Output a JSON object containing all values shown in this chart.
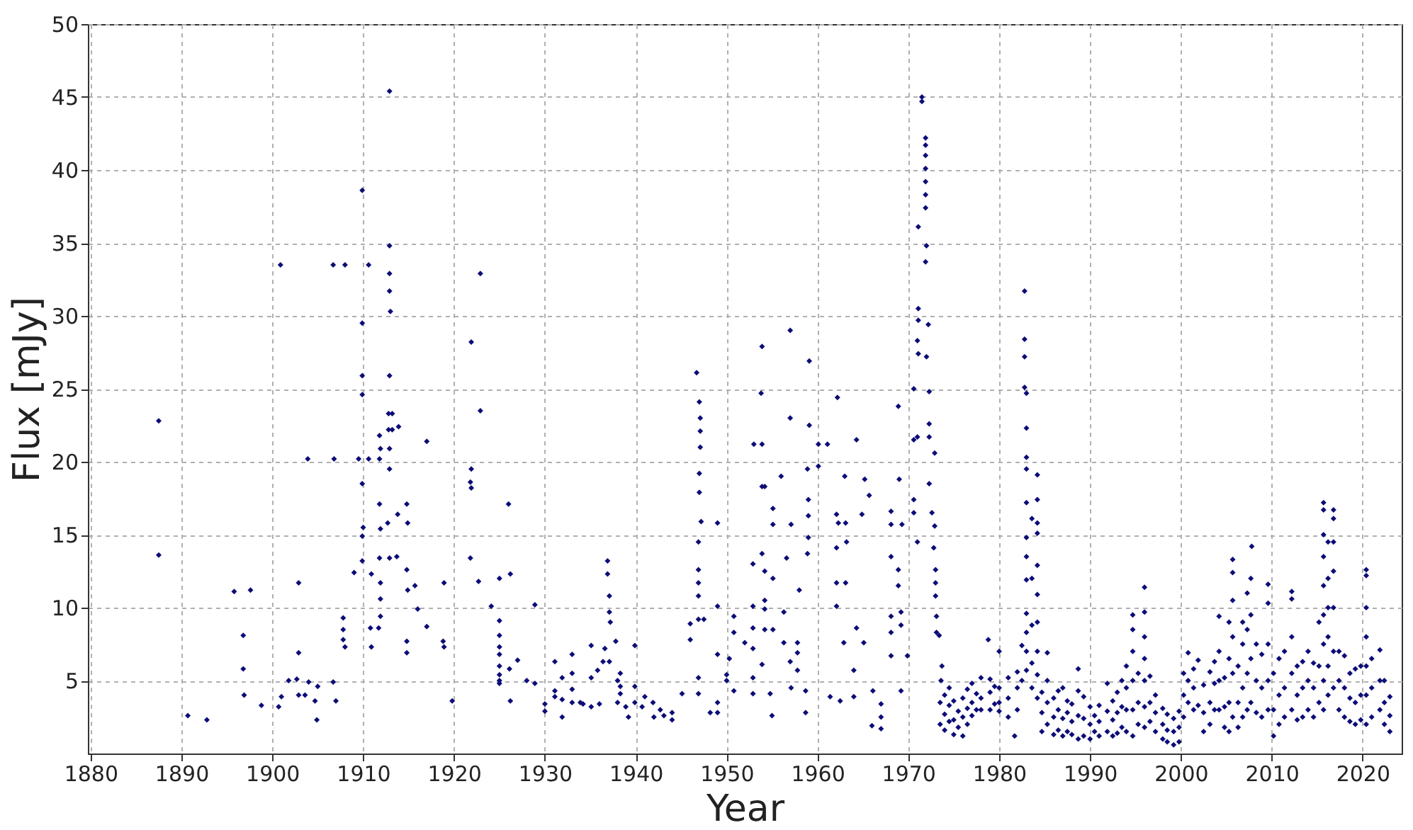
{
  "chart_data": {
    "type": "scatter",
    "xlabel": "Year",
    "ylabel": "Flux [mJy]",
    "xlim": [
      1879.7,
      2024.3
    ],
    "ylim": [
      0,
      50
    ],
    "xticks": [
      1880,
      1890,
      1900,
      1910,
      1920,
      1930,
      1940,
      1950,
      1960,
      1970,
      1980,
      1990,
      2000,
      2010,
      2020
    ],
    "yticks": [
      5,
      10,
      15,
      20,
      25,
      30,
      35,
      40,
      45,
      50
    ],
    "grid": true,
    "marker": "diamond",
    "series": [
      {
        "color": "#0c0c78",
        "x": [
          1887.5,
          1887.5,
          1890.7,
          1892.8,
          1895.8,
          1897.6,
          1896.8,
          1896.8,
          1896.9,
          1898.8,
          1900.9,
          1900.7,
          1901.0,
          1901.8,
          1902.7,
          1902.9,
          1902.9,
          1902.9,
          1903.6,
          1903.9,
          1904.0,
          1904.7,
          1905.0,
          1904.9,
          1906.7,
          1908.0,
          1906.8,
          1906.7,
          1907.0,
          1907.8,
          1907.8,
          1907.8,
          1908.0,
          1909.0,
          1909.5,
          1909.9,
          1909.9,
          1909.9,
          1909.9,
          1909.9,
          1910.0,
          1909.9,
          1909.9,
          1910.6,
          1910.6,
          1910.9,
          1910.8,
          1910.9,
          1911.8,
          1911.9,
          1911.8,
          1911.8,
          1911.9,
          1911.8,
          1911.9,
          1911.9,
          1911.9,
          1911.7,
          1912.9,
          1912.9,
          1912.9,
          1912.9,
          1913.0,
          1912.9,
          1912.8,
          1913.2,
          1912.8,
          1913.2,
          1912.9,
          1912.9,
          1912.7,
          1912.9,
          1913.9,
          1913.8,
          1913.7,
          1914.8,
          1914.9,
          1914.8,
          1914.9,
          1914.8,
          1914.8,
          1915.7,
          1916.0,
          1917.0,
          1917.0,
          1918.9,
          1918.8,
          1918.9,
          1919.8,
          1921.9,
          1921.9,
          1921.8,
          1921.9,
          1921.8,
          1922.9,
          1922.9,
          1922.7,
          1924.1,
          1925.0,
          1925.0,
          1925.0,
          1925.0,
          1925.0,
          1925.0,
          1925.0,
          1925.0,
          1925.0,
          1926.0,
          1926.2,
          1926.1,
          1926.2,
          1927.0,
          1928.0,
          1928.9,
          1928.9,
          1930.0,
          1930.0,
          1931.1,
          1931.1,
          1931.1,
          1931.9,
          1931.9,
          1931.9,
          1933.0,
          1933.0,
          1933.0,
          1933.0,
          1933.9,
          1934.2,
          1935.1,
          1935.1,
          1935.1,
          1935.8,
          1936.0,
          1936.4,
          1936.6,
          1936.9,
          1936.9,
          1937.1,
          1937.1,
          1937.2,
          1937.1,
          1937.8,
          1938.0,
          1938.3,
          1938.0,
          1938.3,
          1938.3,
          1938.9,
          1939.2,
          1939.9,
          1939.9,
          1939.9,
          1940.7,
          1941.0,
          1941.9,
          1942.0,
          1942.7,
          1943.1,
          1944.0,
          1944.0,
          1945.1,
          1946.0,
          1946.0,
          1946.7,
          1947.0,
          1947.1,
          1947.1,
          1947.1,
          1947.0,
          1947.0,
          1947.2,
          1946.9,
          1946.9,
          1946.9,
          1946.9,
          1946.9,
          1946.9,
          1947.5,
          1946.9,
          1949.0,
          1949.0,
          1949.0,
          1949.0,
          1949.0,
          1948.2,
          1950.0,
          1950.0,
          1950.3,
          1950.8,
          1950.8,
          1950.8,
          1952.0,
          1953.0,
          1953.9,
          1952.9,
          1952.9,
          1952.9,
          1952.9,
          1952.9,
          1952.9,
          1953.9,
          1953.8,
          1953.9,
          1954.2,
          1953.9,
          1954.2,
          1954.2,
          1954.2,
          1954.2,
          1953.9,
          1955.1,
          1955.1,
          1955.1,
          1955.1,
          1954.8,
          1955.0,
          1956.0,
          1956.6,
          1956.3,
          1957.1,
          1957.0,
          1957.0,
          1957.0,
          1957.1,
          1956.3,
          1957.8,
          1957.8,
          1957.8,
          1958.0,
          1959.1,
          1959.1,
          1958.9,
          1959.0,
          1959.0,
          1959.0,
          1958.9,
          1958.7,
          1958.7,
          1960.1,
          1961.1,
          1960.1,
          1962.2,
          1961.4,
          1962.5,
          1962.1,
          1962.1,
          1962.1,
          1962.1,
          1962.3,
          1963.1,
          1963.0,
          1963.2,
          1963.1,
          1962.9,
          1964.3,
          1964.3,
          1964.0,
          1964.0,
          1964.9,
          1965.2,
          1965.1,
          1965.7,
          1966.1,
          1967.0,
          1967.0,
          1966.0,
          1967.0,
          1968.9,
          1969.0,
          1968.1,
          1968.1,
          1969.3,
          1968.1,
          1968.9,
          1968.9,
          1968.1,
          1968.1,
          1968.1,
          1969.2,
          1969.2,
          1969.2,
          1969.9,
          1971.5,
          1971.5,
          1971.9,
          1971.9,
          1971.9,
          1971.9,
          1971.9,
          1971.9,
          1971.9,
          1971.1,
          1972.0,
          1971.9,
          1971.1,
          1971.1,
          1971.0,
          1971.1,
          1972.2,
          1972.0,
          1970.6,
          1970.6,
          1971.0,
          1970.6,
          1970.6,
          1971.0,
          1972.3,
          1972.3,
          1972.3,
          1972.9,
          1972.3,
          1972.6,
          1972.9,
          1972.8,
          1973.0,
          1973.0,
          1973.0,
          1973.1,
          1973.1,
          1973.4,
          1973.5,
          1973.5,
          1973.6,
          1973.7,
          1974.0,
          1974.0,
          1974.0,
          1974.5,
          1974.5,
          1974.5,
          1975.0,
          1975.0,
          1975.0,
          1975.5,
          1975.5,
          1976.0,
          1976.0,
          1976.0,
          1976.5,
          1976.5,
          1976.5,
          1977.0,
          1977.0,
          1977.0,
          1977.5,
          1977.5,
          1978.0,
          1978.0,
          1978.0,
          1978.8,
          1979.0,
          1979.0,
          1979.0,
          1979.5,
          1979.5,
          1980.0,
          1980.0,
          1980.0,
          1980.0,
          1981.0,
          1981.0,
          1981.0,
          1981.7,
          1982.0,
          1982.0,
          1982.0,
          1982.5,
          1982.5,
          1982.8,
          1982.8,
          1982.8,
          1982.8,
          1983.0,
          1983.0,
          1983.0,
          1983.0,
          1983.0,
          1983.0,
          1983.0,
          1983.0,
          1983.0,
          1983.0,
          1983.0,
          1983.0,
          1983.6,
          1983.6,
          1983.6,
          1983.6,
          1983.6,
          1984.2,
          1984.2,
          1984.2,
          1984.2,
          1984.2,
          1984.2,
          1984.2,
          1984.2,
          1984.2,
          1984.2,
          1984.7,
          1984.7,
          1984.7,
          1985.3,
          1985.3,
          1985.3,
          1985.3,
          1986.0,
          1986.0,
          1986.0,
          1986.5,
          1986.5,
          1986.5,
          1987.0,
          1987.0,
          1987.0,
          1987.5,
          1987.5,
          1987.5,
          1988.0,
          1988.0,
          1988.0,
          1988.7,
          1988.7,
          1988.7,
          1988.7,
          1989.3,
          1989.3,
          1989.3,
          1990.0,
          1990.0,
          1990.0,
          1990.5,
          1990.5,
          1991.0,
          1991.0,
          1991.0,
          1991.9,
          1991.9,
          1991.9,
          1992.5,
          1992.5,
          1992.5,
          1993.0,
          1993.0,
          1993.0,
          1993.5,
          1993.5,
          1993.5,
          1994.0,
          1994.0,
          1994.0,
          1994.0,
          1994.7,
          1994.7,
          1994.7,
          1994.7,
          1994.7,
          1994.7,
          1995.3,
          1995.3,
          1995.3,
          1996.0,
          1996.0,
          1996.0,
          1996.0,
          1996.0,
          1996.0,
          1996.0,
          1996.6,
          1996.6,
          1996.6,
          1997.2,
          1997.2,
          1997.2,
          1998.0,
          1998.0,
          1998.0,
          1998.5,
          1998.5,
          1998.5,
          1999.2,
          1999.2,
          1999.2,
          1999.8,
          1999.8,
          1999.8,
          2000.3,
          2000.3,
          2000.3,
          2000.8,
          2000.8,
          2000.8,
          2001.4,
          2001.4,
          2001.4,
          2001.9,
          2001.9,
          2002.5,
          2002.5,
          2002.5,
          2003.2,
          2003.2,
          2003.2,
          2003.7,
          2003.7,
          2003.7,
          2004.2,
          2004.2,
          2004.2,
          2004.2,
          2004.8,
          2004.8,
          2004.8,
          2005.3,
          2005.3,
          2005.3,
          2005.3,
          2005.7,
          2005.7,
          2005.7,
          2005.7,
          2005.7,
          2005.7,
          2006.3,
          2006.3,
          2006.3,
          2006.8,
          2006.8,
          2006.8,
          2006.8,
          2007.3,
          2007.3,
          2007.3,
          2007.3,
          2007.7,
          2007.7,
          2007.7,
          2007.7,
          2007.8,
          2008.3,
          2008.3,
          2008.3,
          2008.9,
          2008.9,
          2008.9,
          2009.6,
          2009.6,
          2009.6,
          2009.6,
          2009.6,
          2010.2,
          2010.2,
          2010.2,
          2010.8,
          2010.8,
          2010.8,
          2011.4,
          2011.4,
          2011.4,
          2012.2,
          2012.2,
          2012.2,
          2012.2,
          2012.2,
          2012.8,
          2012.8,
          2012.8,
          2013.4,
          2013.4,
          2013.4,
          2014.0,
          2014.0,
          2014.0,
          2014.6,
          2014.6,
          2014.6,
          2015.2,
          2015.2,
          2015.2,
          2015.7,
          2015.7,
          2015.7,
          2015.7,
          2015.7,
          2015.7,
          2015.7,
          2015.7,
          2015.7,
          2016.2,
          2016.2,
          2016.2,
          2016.2,
          2016.2,
          2016.2,
          2016.8,
          2016.8,
          2016.8,
          2016.8,
          2016.8,
          2016.8,
          2016.8,
          2017.4,
          2017.4,
          2017.4,
          2018.0,
          2018.0,
          2018.0,
          2018.6,
          2018.6,
          2018.6,
          2019.2,
          2019.2,
          2019.2,
          2019.8,
          2019.8,
          2019.8,
          2020.4,
          2020.4,
          2020.4,
          2020.4,
          2020.4,
          2020.4,
          2020.4,
          2021.0,
          2021.0,
          2021.0,
          2021.9,
          2021.9,
          2021.9,
          2022.4,
          2022.4,
          2022.4,
          2023.0,
          2023.0,
          2023.0
        ],
        "values": [
          22.8,
          13.6,
          2.6,
          2.3,
          11.1,
          11.2,
          8.1,
          5.8,
          4.0,
          3.3,
          33.5,
          3.2,
          3.9,
          5.0,
          5.1,
          11.7,
          6.9,
          4.0,
          4.0,
          20.2,
          4.9,
          3.6,
          4.6,
          2.3,
          33.5,
          33.5,
          20.2,
          4.9,
          3.6,
          9.3,
          8.5,
          7.8,
          7.3,
          12.4,
          20.2,
          38.6,
          29.5,
          25.9,
          24.6,
          18.5,
          15.5,
          14.9,
          13.2,
          33.5,
          20.2,
          12.3,
          8.6,
          7.3,
          21.8,
          20.9,
          20.2,
          17.1,
          15.4,
          13.4,
          11.7,
          10.6,
          9.4,
          8.6,
          45.4,
          34.8,
          32.9,
          31.7,
          30.3,
          25.9,
          23.3,
          23.3,
          22.2,
          22.2,
          20.9,
          19.5,
          15.8,
          13.4,
          22.4,
          16.4,
          13.5,
          17.1,
          15.8,
          12.6,
          11.2,
          7.7,
          6.9,
          11.5,
          9.9,
          21.4,
          8.7,
          11.7,
          7.7,
          7.3,
          3.6,
          28.2,
          19.5,
          18.6,
          18.2,
          13.4,
          32.9,
          23.5,
          11.8,
          10.1,
          12.0,
          9.1,
          8.1,
          7.3,
          6.8,
          6.0,
          5.4,
          5.0,
          4.8,
          17.1,
          12.3,
          5.8,
          3.6,
          6.4,
          5.0,
          4.8,
          10.2,
          2.9,
          3.4,
          6.3,
          3.9,
          4.3,
          2.5,
          5.2,
          3.7,
          6.8,
          5.5,
          4.4,
          3.5,
          3.5,
          3.4,
          7.4,
          5.2,
          3.2,
          5.7,
          3.4,
          6.3,
          7.2,
          13.2,
          12.3,
          10.8,
          9.7,
          9.0,
          6.3,
          7.7,
          5.0,
          4.1,
          3.5,
          5.5,
          4.6,
          3.2,
          2.5,
          7.4,
          4.6,
          3.5,
          3.2,
          3.9,
          3.5,
          2.5,
          3.0,
          2.6,
          2.8,
          2.3,
          4.1,
          8.9,
          7.8,
          26.1,
          24.1,
          23.0,
          22.1,
          21.0,
          19.2,
          17.9,
          15.9,
          14.5,
          12.6,
          11.7,
          10.8,
          9.2,
          5.2,
          9.2,
          4.1,
          15.8,
          10.1,
          6.8,
          3.5,
          2.8,
          2.8,
          5.0,
          5.4,
          6.5,
          9.4,
          8.3,
          4.3,
          7.6,
          21.2,
          21.2,
          13.0,
          10.1,
          8.6,
          7.2,
          5.2,
          4.1,
          27.9,
          24.7,
          18.3,
          18.3,
          13.7,
          12.5,
          10.5,
          9.9,
          8.5,
          6.1,
          16.8,
          15.7,
          12.0,
          8.5,
          4.1,
          2.6,
          19.0,
          13.4,
          9.7,
          15.7,
          29.0,
          23.0,
          6.3,
          4.5,
          7.6,
          7.6,
          6.9,
          5.7,
          11.2,
          26.9,
          22.5,
          19.5,
          17.4,
          16.3,
          14.8,
          13.7,
          4.3,
          2.8,
          21.2,
          21.2,
          19.7,
          24.4,
          3.9,
          3.6,
          16.4,
          14.1,
          11.7,
          10.1,
          15.8,
          15.8,
          19.0,
          14.5,
          11.7,
          7.6,
          21.5,
          8.6,
          5.7,
          3.9,
          16.4,
          18.8,
          7.6,
          17.7,
          4.3,
          2.5,
          1.7,
          1.9,
          3.4,
          23.8,
          18.8,
          16.6,
          15.7,
          15.7,
          13.5,
          12.6,
          11.5,
          9.4,
          8.3,
          6.7,
          9.7,
          8.8,
          4.3,
          6.7,
          45.0,
          44.7,
          42.2,
          41.7,
          41.0,
          40.1,
          39.2,
          38.3,
          37.4,
          36.1,
          34.8,
          33.7,
          30.5,
          29.7,
          28.3,
          27.4,
          29.4,
          27.2,
          25.0,
          21.5,
          21.7,
          17.4,
          16.5,
          14.5,
          24.8,
          22.6,
          21.7,
          20.6,
          18.5,
          16.5,
          15.6,
          14.1,
          12.6,
          11.7,
          10.8,
          9.4,
          8.3,
          8.1,
          2.0,
          3.5,
          5.0,
          6.0,
          1.6,
          2.7,
          4.0,
          2.2,
          3.3,
          4.5,
          1.3,
          2.3,
          3.6,
          1.8,
          2.9,
          1.2,
          2.5,
          3.8,
          2.0,
          3.1,
          4.4,
          2.6,
          3.5,
          4.8,
          3.0,
          4.1,
          3.0,
          3.8,
          5.2,
          7.8,
          3.0,
          4.2,
          5.1,
          3.4,
          4.6,
          2.9,
          3.5,
          4.5,
          7.0,
          2.5,
          3.8,
          5.2,
          1.2,
          3.0,
          4.5,
          5.6,
          5.0,
          7.4,
          31.7,
          28.4,
          27.2,
          25.1,
          24.7,
          22.3,
          20.3,
          19.5,
          17.2,
          14.8,
          13.5,
          11.9,
          9.6,
          8.3,
          7.0,
          5.7,
          16.1,
          12.0,
          8.8,
          6.2,
          4.5,
          19.1,
          17.4,
          15.8,
          15.1,
          12.9,
          10.9,
          9.0,
          7.0,
          5.4,
          3.8,
          1.5,
          2.8,
          4.2,
          6.9,
          2.0,
          3.5,
          5.0,
          1.3,
          2.5,
          3.8,
          1.6,
          3.0,
          4.3,
          1.2,
          2.4,
          4.5,
          1.5,
          2.8,
          3.6,
          1.3,
          2.2,
          3.4,
          1.0,
          2.6,
          4.3,
          5.8,
          1.2,
          2.4,
          3.9,
          1.0,
          2.0,
          3.2,
          1.5,
          2.6,
          1.2,
          2.2,
          3.3,
          1.5,
          2.9,
          4.8,
          1.2,
          2.3,
          3.6,
          1.4,
          2.8,
          4.2,
          1.8,
          3.2,
          5.0,
          1.5,
          3.0,
          4.5,
          6.0,
          1.2,
          3.0,
          5.0,
          7.0,
          8.5,
          9.5,
          2.0,
          3.5,
          5.5,
          11.4,
          9.7,
          8.0,
          6.5,
          5.0,
          3.2,
          1.8,
          2.2,
          3.5,
          5.3,
          1.5,
          2.8,
          4.0,
          1.0,
          2.0,
          3.1,
          0.8,
          1.6,
          2.7,
          0.6,
          1.5,
          2.4,
          0.8,
          1.8,
          2.9,
          2.5,
          4.0,
          5.5,
          6.9,
          5.0,
          3.5,
          3.0,
          4.5,
          5.8,
          6.4,
          3.3,
          1.5,
          2.8,
          4.7,
          2.0,
          3.5,
          5.6,
          3.0,
          4.8,
          6.3,
          9.4,
          7.0,
          5.0,
          3.0,
          1.8,
          3.2,
          5.2,
          1.5,
          3.5,
          6.5,
          9.0,
          13.3,
          12.4,
          10.5,
          8.0,
          5.5,
          2.5,
          1.8,
          3.5,
          6.0,
          2.5,
          4.5,
          7.5,
          9.0,
          3.0,
          5.5,
          8.5,
          11.0,
          12.0,
          9.5,
          6.5,
          3.5,
          14.2,
          2.8,
          5.0,
          7.5,
          2.5,
          4.5,
          6.8,
          11.6,
          10.3,
          7.5,
          5.0,
          3.0,
          1.2,
          3.0,
          5.5,
          2.0,
          4.0,
          6.5,
          2.5,
          4.5,
          7.0,
          11.1,
          10.6,
          8.0,
          5.5,
          3.0,
          2.3,
          4.0,
          6.0,
          2.5,
          4.5,
          6.3,
          7.0,
          5.0,
          3.0,
          2.5,
          4.5,
          6.2,
          3.5,
          6.0,
          9.0,
          17.2,
          16.7,
          15.0,
          13.5,
          11.5,
          9.5,
          7.5,
          5.0,
          3.0,
          14.5,
          12.0,
          10.0,
          8.0,
          6.0,
          4.0,
          16.7,
          16.1,
          14.5,
          12.5,
          10.0,
          7.0,
          4.5,
          3.0,
          5.0,
          7.0,
          2.5,
          4.5,
          6.7,
          2.2,
          3.8,
          5.5,
          2.0,
          3.5,
          5.8,
          2.3,
          4.0,
          6.0,
          12.6,
          12.2,
          10.0,
          8.0,
          6.0,
          4.0,
          2.0,
          2.5,
          4.5,
          6.5,
          7.1,
          5.0,
          3.0,
          2.0,
          3.5,
          5.0,
          1.5,
          2.6,
          3.9
        ]
      }
    ]
  }
}
